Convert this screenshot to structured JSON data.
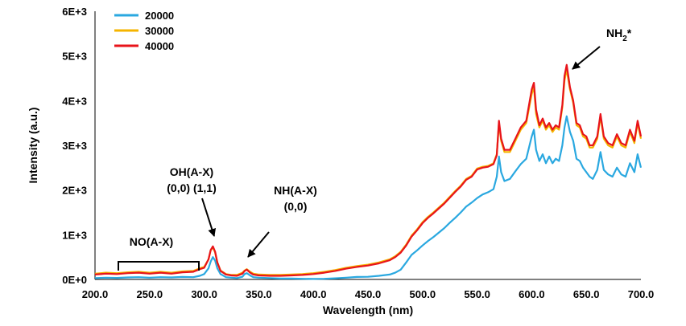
{
  "chart_data": {
    "type": "line",
    "title": "",
    "xlabel": "Wavelength (nm)",
    "ylabel": "Intensity (a.u.)",
    "xlim": [
      200,
      700
    ],
    "ylim": [
      0,
      6000
    ],
    "x_ticks": [
      "200.0",
      "250.0",
      "300.0",
      "350.0",
      "400.0",
      "450.0",
      "500.0",
      "550.0",
      "600.0",
      "650.0",
      "700.0"
    ],
    "y_ticks": [
      "0E+0",
      "1E+3",
      "2E+3",
      "3E+3",
      "4E+3",
      "5E+3",
      "6E+3"
    ],
    "grid": false,
    "legend_position": "top-left",
    "series": [
      {
        "name": "20000",
        "color": "#2aa8e0",
        "x": [
          200,
          210,
          220,
          230,
          240,
          250,
          260,
          270,
          280,
          290,
          296,
          300,
          304,
          306,
          308,
          310,
          312,
          315,
          320,
          325,
          330,
          335,
          337,
          339,
          342,
          345,
          350,
          360,
          370,
          380,
          390,
          400,
          410,
          420,
          430,
          440,
          450,
          460,
          470,
          475,
          480,
          485,
          490,
          495,
          500,
          505,
          510,
          515,
          520,
          525,
          530,
          535,
          540,
          545,
          550,
          555,
          560,
          565,
          568,
          570,
          572,
          575,
          580,
          585,
          590,
          595,
          600,
          602,
          604,
          607,
          610,
          613,
          616,
          619,
          622,
          625,
          628,
          630,
          632,
          635,
          638,
          641,
          644,
          647,
          650,
          653,
          656,
          660,
          663,
          666,
          670,
          674,
          678,
          682,
          686,
          690,
          694,
          697,
          700
        ],
        "values": [
          30,
          40,
          35,
          45,
          50,
          40,
          50,
          45,
          55,
          50,
          80,
          120,
          250,
          400,
          500,
          420,
          250,
          120,
          50,
          40,
          30,
          60,
          120,
          140,
          90,
          50,
          40,
          30,
          20,
          20,
          15,
          10,
          15,
          25,
          40,
          55,
          60,
          80,
          110,
          150,
          220,
          380,
          550,
          650,
          760,
          860,
          950,
          1050,
          1150,
          1270,
          1380,
          1500,
          1630,
          1720,
          1820,
          1900,
          1950,
          2020,
          2300,
          2750,
          2400,
          2200,
          2250,
          2420,
          2580,
          2700,
          3200,
          3350,
          2900,
          2650,
          2800,
          2600,
          2750,
          2600,
          2700,
          2650,
          3000,
          3400,
          3650,
          3300,
          3100,
          2700,
          2650,
          2500,
          2400,
          2300,
          2250,
          2450,
          2850,
          2450,
          2350,
          2300,
          2500,
          2350,
          2300,
          2600,
          2400,
          2800,
          2500
        ]
      },
      {
        "name": "30000",
        "color": "#f5b400",
        "x": [
          200,
          210,
          220,
          230,
          240,
          250,
          260,
          270,
          280,
          290,
          296,
          300,
          304,
          306,
          308,
          310,
          312,
          315,
          320,
          325,
          330,
          335,
          337,
          339,
          342,
          345,
          350,
          360,
          370,
          380,
          390,
          400,
          410,
          420,
          430,
          440,
          450,
          460,
          470,
          475,
          480,
          485,
          490,
          495,
          500,
          505,
          510,
          515,
          520,
          525,
          530,
          535,
          540,
          545,
          550,
          555,
          560,
          565,
          568,
          570,
          572,
          575,
          580,
          585,
          590,
          595,
          600,
          602,
          604,
          607,
          610,
          613,
          616,
          619,
          622,
          625,
          628,
          630,
          632,
          635,
          638,
          641,
          644,
          647,
          650,
          653,
          656,
          660,
          663,
          666,
          670,
          674,
          678,
          682,
          686,
          690,
          694,
          697,
          700
        ],
        "values": [
          130,
          150,
          140,
          160,
          170,
          150,
          170,
          150,
          180,
          190,
          250,
          280,
          450,
          650,
          720,
          600,
          380,
          200,
          120,
          100,
          100,
          150,
          200,
          230,
          170,
          130,
          110,
          100,
          100,
          110,
          120,
          140,
          170,
          210,
          260,
          300,
          330,
          380,
          450,
          520,
          620,
          780,
          980,
          1120,
          1280,
          1400,
          1500,
          1610,
          1720,
          1850,
          1980,
          2100,
          2250,
          2320,
          2480,
          2520,
          2540,
          2600,
          2800,
          3500,
          3100,
          2850,
          2850,
          3100,
          3350,
          3500,
          4150,
          4300,
          3700,
          3400,
          3550,
          3350,
          3450,
          3300,
          3400,
          3350,
          3850,
          4450,
          4700,
          4250,
          3950,
          3450,
          3400,
          3200,
          3150,
          2950,
          2950,
          3150,
          3650,
          3150,
          3000,
          2950,
          3200,
          3000,
          2950,
          3300,
          3050,
          3500,
          3150
        ]
      },
      {
        "name": "40000",
        "color": "#e8131a",
        "x": [
          200,
          210,
          220,
          230,
          240,
          250,
          260,
          270,
          280,
          290,
          296,
          300,
          304,
          306,
          308,
          310,
          312,
          315,
          320,
          325,
          330,
          335,
          337,
          339,
          342,
          345,
          350,
          360,
          370,
          380,
          390,
          400,
          410,
          420,
          430,
          440,
          450,
          460,
          470,
          475,
          480,
          485,
          490,
          495,
          500,
          505,
          510,
          515,
          520,
          525,
          530,
          535,
          540,
          545,
          550,
          555,
          560,
          565,
          568,
          570,
          572,
          575,
          580,
          585,
          590,
          595,
          600,
          602,
          604,
          607,
          610,
          613,
          616,
          619,
          622,
          625,
          628,
          630,
          632,
          635,
          638,
          641,
          644,
          647,
          650,
          653,
          656,
          660,
          663,
          666,
          670,
          674,
          678,
          682,
          686,
          690,
          694,
          697,
          700
        ],
        "values": [
          110,
          130,
          120,
          140,
          150,
          130,
          150,
          130,
          160,
          170,
          230,
          260,
          450,
          660,
          740,
          620,
          380,
          190,
          110,
          90,
          80,
          130,
          190,
          220,
          150,
          110,
          90,
          80,
          80,
          90,
          100,
          120,
          150,
          190,
          240,
          280,
          310,
          360,
          430,
          500,
          600,
          760,
          960,
          1100,
          1260,
          1380,
          1480,
          1590,
          1700,
          1830,
          1960,
          2080,
          2230,
          2300,
          2460,
          2500,
          2520,
          2580,
          2780,
          3550,
          3150,
          2900,
          2900,
          3150,
          3400,
          3550,
          4250,
          4400,
          3800,
          3450,
          3600,
          3400,
          3500,
          3350,
          3450,
          3400,
          3900,
          4550,
          4800,
          4300,
          4000,
          3500,
          3450,
          3250,
          3200,
          3000,
          3000,
          3200,
          3700,
          3200,
          3050,
          3000,
          3250,
          3050,
          3000,
          3350,
          3100,
          3550,
          3200
        ]
      }
    ],
    "annotations": [
      {
        "lines": [
          "NH",
          "2",
          "*"
        ]
      },
      {
        "lines": [
          "OH(A-X)",
          "(0,0) (1,1)"
        ]
      },
      {
        "lines": [
          "NH(A-X)",
          "(0,0)"
        ]
      },
      {
        "lines": [
          "NO(A-X)"
        ]
      }
    ]
  }
}
